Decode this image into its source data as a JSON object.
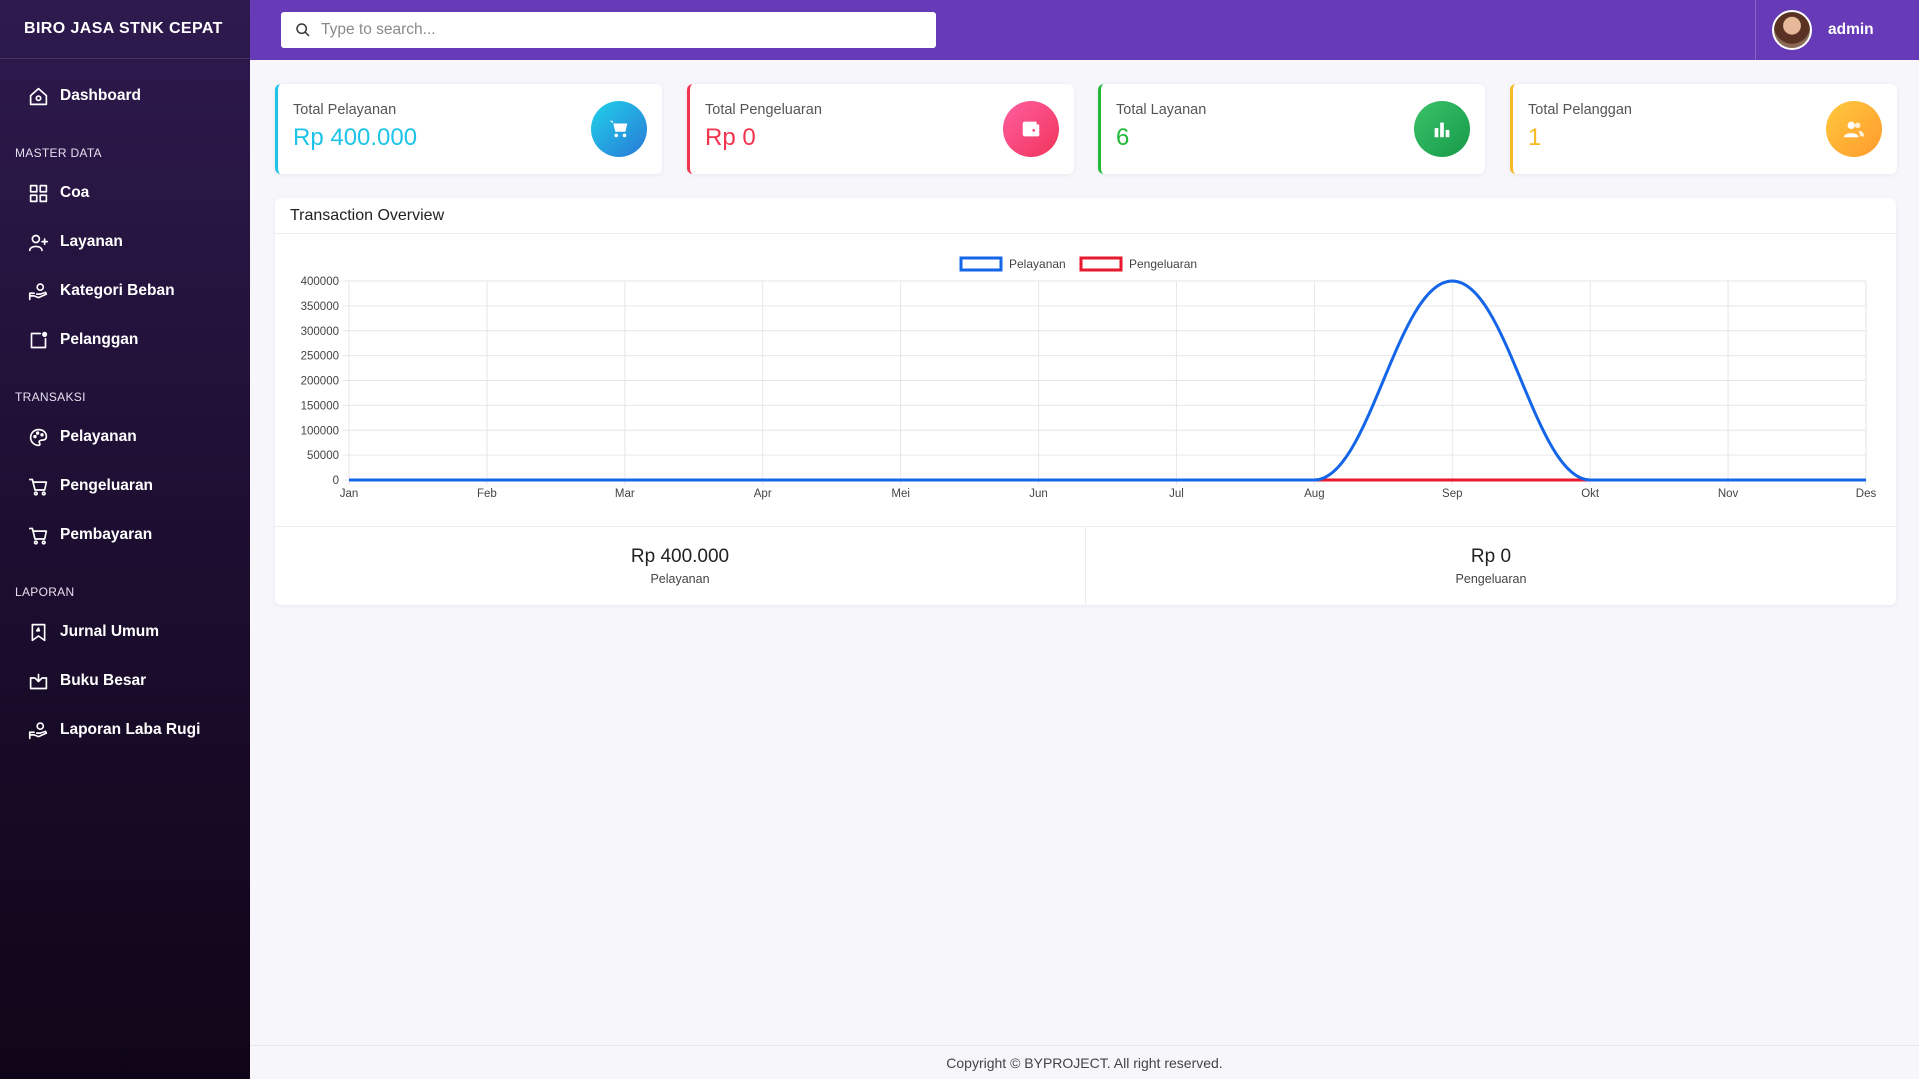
{
  "app": {
    "brand": "BIRO JASA STNK CEPAT"
  },
  "sidebar": {
    "dashboard": {
      "label": "Dashboard",
      "icon": "home-icon"
    },
    "sections": {
      "master": "MASTER DATA",
      "transaksi": "TRANSAKSI",
      "laporan": "LAPORAN"
    },
    "master_items": [
      {
        "label": "Coa",
        "icon": "grid-icon"
      },
      {
        "label": "Layanan",
        "icon": "user-plus-icon"
      },
      {
        "label": "Kategori Beban",
        "icon": "hand-coin-icon"
      },
      {
        "label": "Pelanggan",
        "icon": "note-icon"
      }
    ],
    "transaksi_items": [
      {
        "label": "Pelayanan",
        "icon": "palette-icon"
      },
      {
        "label": "Pengeluaran",
        "icon": "cart-icon"
      },
      {
        "label": "Pembayaran",
        "icon": "cart-icon"
      }
    ],
    "laporan_items": [
      {
        "label": "Jurnal Umum",
        "icon": "bookmark-icon"
      },
      {
        "label": "Buku Besar",
        "icon": "tray-icon"
      },
      {
        "label": "Laporan Laba Rugi",
        "icon": "hand-coin-icon"
      }
    ]
  },
  "topbar": {
    "search_placeholder": "Type to search...",
    "user_name": "admin"
  },
  "cards": [
    {
      "title": "Total Pelayanan",
      "value": "Rp 400.000",
      "color": "#1ec3e8",
      "icon": "cart-icon"
    },
    {
      "title": "Total Pengeluaran",
      "value": "Rp 0",
      "color": "#f3344e",
      "icon": "wallet-icon"
    },
    {
      "title": "Total Layanan",
      "value": "6",
      "color": "#22b93a",
      "icon": "bar-chart-icon"
    },
    {
      "title": "Total Pelanggan",
      "value": "1",
      "color": "#f7b924",
      "icon": "users-icon"
    }
  ],
  "chart_panel": {
    "title": "Transaction Overview",
    "summary": [
      {
        "value": "Rp 400.000",
        "label": "Pelayanan"
      },
      {
        "value": "Rp 0",
        "label": "Pengeluaran"
      }
    ]
  },
  "chart_data": {
    "type": "line",
    "title": "",
    "categories": [
      "Jan",
      "Feb",
      "Mar",
      "Apr",
      "Mei",
      "Jun",
      "Jul",
      "Aug",
      "Sep",
      "Okt",
      "Nov",
      "Des"
    ],
    "series": [
      {
        "name": "Pelayanan",
        "color": "#1565e8",
        "values": [
          0,
          0,
          0,
          0,
          0,
          0,
          0,
          0,
          400000,
          0,
          0,
          0
        ]
      },
      {
        "name": "Pengeluaran",
        "color": "#e8192c",
        "values": [
          0,
          0,
          0,
          0,
          0,
          0,
          0,
          0,
          0,
          0,
          0,
          0
        ]
      }
    ],
    "ylim": [
      0,
      400000
    ],
    "yticks": [
      0,
      50000,
      100000,
      150000,
      200000,
      250000,
      300000,
      350000,
      400000
    ],
    "grid": true,
    "legend": "top-center"
  },
  "footer": {
    "text": "Copyright © BYPROJECT. All right reserved."
  }
}
